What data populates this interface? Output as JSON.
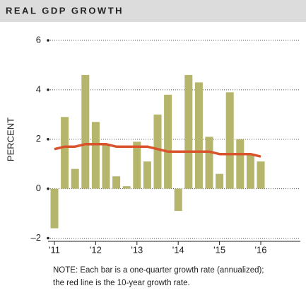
{
  "chart_data": {
    "type": "bar",
    "title": "REAL GDP GROWTH",
    "y_label": "PERCENT",
    "note": [
      "NOTE: Each bar is a one-quarter growth rate (annualized);",
      "the red line is the 10-year growth rate."
    ],
    "categories": [
      "'11",
      null,
      null,
      null,
      "'12",
      null,
      null,
      null,
      "'13",
      null,
      null,
      null,
      "'14",
      null,
      null,
      null,
      "'15",
      null,
      null,
      null,
      "'16"
    ],
    "series": [
      {
        "type": "bar",
        "color": "#b5b56b",
        "values": [
          -1.6,
          2.9,
          0.8,
          4.6,
          2.7,
          1.8,
          0.5,
          0.1,
          1.9,
          1.1,
          3.0,
          3.8,
          -0.9,
          4.6,
          4.3,
          2.1,
          0.6,
          3.9,
          2.0,
          1.4,
          1.1
        ]
      },
      {
        "type": "line",
        "color": "#d9542c",
        "values": [
          1.6,
          1.7,
          1.7,
          1.8,
          1.8,
          1.8,
          1.7,
          1.7,
          1.7,
          1.7,
          1.6,
          1.5,
          1.5,
          1.5,
          1.5,
          1.5,
          1.4,
          1.4,
          1.4,
          1.4,
          1.3
        ]
      }
    ],
    "ylim": [
      -2.1,
      6.2
    ],
    "yticks": [
      {
        "value": -2,
        "label": "–2"
      },
      0,
      2,
      4,
      6
    ],
    "grid": true
  }
}
